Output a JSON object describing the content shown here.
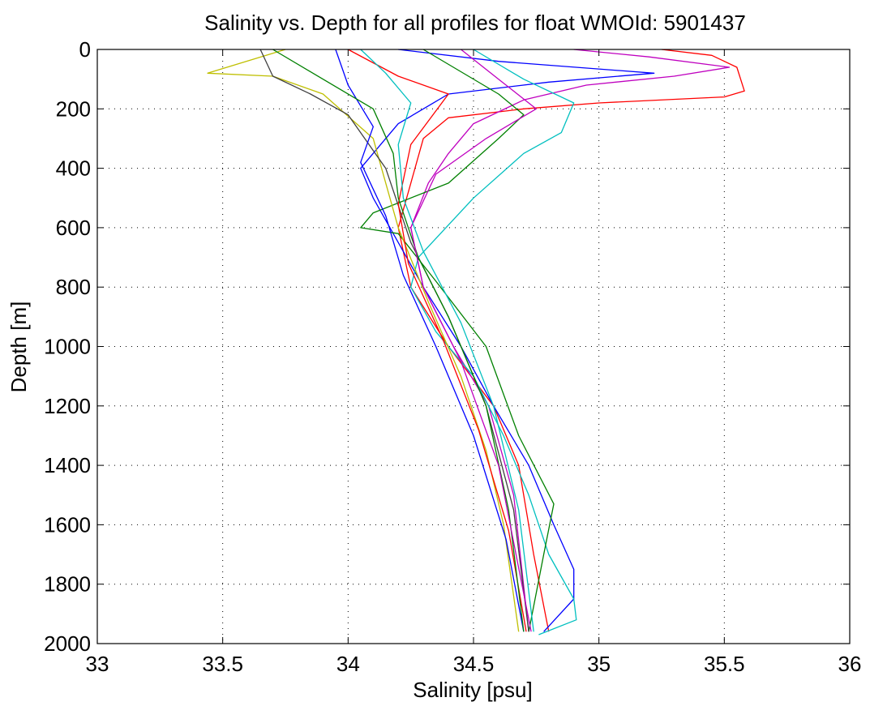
{
  "chart_data": {
    "type": "line",
    "title": "Salinity vs. Depth for all profiles for float WMOId: 5901437",
    "xlabel": "Salinity [psu]",
    "ylabel": "Depth [m]",
    "xlim": [
      33,
      36
    ],
    "ylim": [
      2000,
      0
    ],
    "y_axis_reversed": true,
    "grid": true,
    "grid_style": "dotted",
    "x_ticks": [
      33,
      33.5,
      34,
      34.5,
      35,
      35.5,
      36
    ],
    "x_tick_labels": [
      "33",
      "33.5",
      "34",
      "34.5",
      "35",
      "35.5",
      "36"
    ],
    "y_ticks": [
      0,
      200,
      400,
      600,
      800,
      1000,
      1200,
      1400,
      1600,
      1800,
      2000
    ],
    "y_tick_labels": [
      "0",
      "200",
      "400",
      "600",
      "800",
      "1000",
      "1200",
      "1400",
      "1600",
      "1800",
      "2000"
    ],
    "series_colors": [
      "#0000ff",
      "#008000",
      "#ff0000",
      "#00bfbf",
      "#bf00bf",
      "#bfbf00",
      "#404040"
    ],
    "series": [
      {
        "color": "#ff0000",
        "x": [
          35.25,
          35.45,
          35.55,
          35.58,
          35.5,
          35.0,
          34.7,
          34.4,
          34.3,
          34.25,
          34.2,
          34.25,
          34.4,
          34.58,
          34.68,
          34.74,
          34.8
        ],
        "y": [
          0,
          20,
          60,
          140,
          160,
          180,
          200,
          230,
          300,
          450,
          600,
          800,
          1000,
          1200,
          1400,
          1700,
          1960
        ]
      },
      {
        "color": "#bf00bf",
        "x": [
          34.9,
          35.2,
          35.52,
          35.3,
          34.95,
          34.7,
          34.5,
          34.4,
          34.32,
          34.25,
          34.3,
          34.42,
          34.56,
          34.66,
          34.72
        ],
        "y": [
          0,
          25,
          60,
          90,
          120,
          170,
          250,
          350,
          450,
          600,
          800,
          1000,
          1200,
          1500,
          1960
        ]
      },
      {
        "color": "#0000ff",
        "x": [
          34.2,
          34.6,
          35.22,
          34.8,
          34.4,
          34.2,
          34.05,
          34.1,
          34.2,
          34.3,
          34.45,
          34.58,
          34.72,
          34.82,
          34.9,
          34.9,
          34.78
        ],
        "y": [
          0,
          40,
          80,
          110,
          150,
          250,
          400,
          500,
          650,
          800,
          1000,
          1200,
          1400,
          1600,
          1750,
          1850,
          1960
        ]
      },
      {
        "color": "#00bfbf",
        "x": [
          34.5,
          34.7,
          34.9,
          34.85,
          34.7,
          34.5,
          34.28,
          34.25,
          34.35,
          34.5,
          34.62,
          34.72,
          34.8,
          34.9,
          34.91,
          34.76
        ],
        "y": [
          0,
          100,
          180,
          280,
          350,
          500,
          700,
          800,
          950,
          1100,
          1300,
          1500,
          1700,
          1850,
          1920,
          1970
        ]
      },
      {
        "color": "#008000",
        "x": [
          34.3,
          34.6,
          34.7,
          34.6,
          34.4,
          34.1,
          34.05,
          34.2,
          34.35,
          34.55,
          34.68,
          34.82,
          34.78,
          34.72
        ],
        "y": [
          0,
          150,
          220,
          300,
          450,
          550,
          600,
          620,
          780,
          1000,
          1300,
          1530,
          1700,
          1960
        ]
      },
      {
        "color": "#bfbf00",
        "x": [
          33.75,
          33.44,
          33.7,
          33.9,
          34.1,
          34.2,
          34.32,
          34.45,
          34.55,
          34.62,
          34.68
        ],
        "y": [
          0,
          80,
          90,
          150,
          300,
          600,
          850,
          1100,
          1350,
          1600,
          1960
        ]
      },
      {
        "color": "#404040",
        "x": [
          33.65,
          33.7,
          33.85,
          34.0,
          34.15,
          34.25,
          34.4,
          34.55,
          34.66,
          34.72
        ],
        "y": [
          0,
          90,
          150,
          220,
          400,
          650,
          900,
          1200,
          1550,
          1960
        ]
      },
      {
        "color": "#0000ff",
        "x": [
          33.95,
          34.0,
          34.1,
          34.05,
          34.15,
          34.22,
          34.35,
          34.5,
          34.63,
          34.7
        ],
        "y": [
          0,
          120,
          260,
          380,
          560,
          760,
          1000,
          1300,
          1650,
          1960
        ]
      },
      {
        "color": "#ff0000",
        "x": [
          34.0,
          34.2,
          34.4,
          34.25,
          34.2,
          34.24,
          34.38,
          34.52,
          34.64,
          34.71
        ],
        "y": [
          0,
          90,
          150,
          320,
          520,
          720,
          980,
          1280,
          1620,
          1960
        ]
      },
      {
        "color": "#008000",
        "x": [
          33.7,
          33.9,
          34.1,
          34.18,
          34.2,
          34.28,
          34.4,
          34.55,
          34.64,
          34.7
        ],
        "y": [
          0,
          100,
          200,
          350,
          500,
          700,
          900,
          1200,
          1550,
          1960
        ]
      },
      {
        "color": "#bf00bf",
        "x": [
          34.45,
          34.6,
          34.75,
          34.55,
          34.35,
          34.25,
          34.3,
          34.45,
          34.6,
          34.73
        ],
        "y": [
          0,
          100,
          200,
          300,
          420,
          600,
          800,
          1050,
          1400,
          1960
        ]
      },
      {
        "color": "#00bfbf",
        "x": [
          34.05,
          34.15,
          34.25,
          34.2,
          34.22,
          34.3,
          34.45,
          34.58,
          34.68,
          34.74
        ],
        "y": [
          0,
          80,
          180,
          320,
          500,
          680,
          920,
          1200,
          1550,
          1960
        ]
      }
    ]
  }
}
